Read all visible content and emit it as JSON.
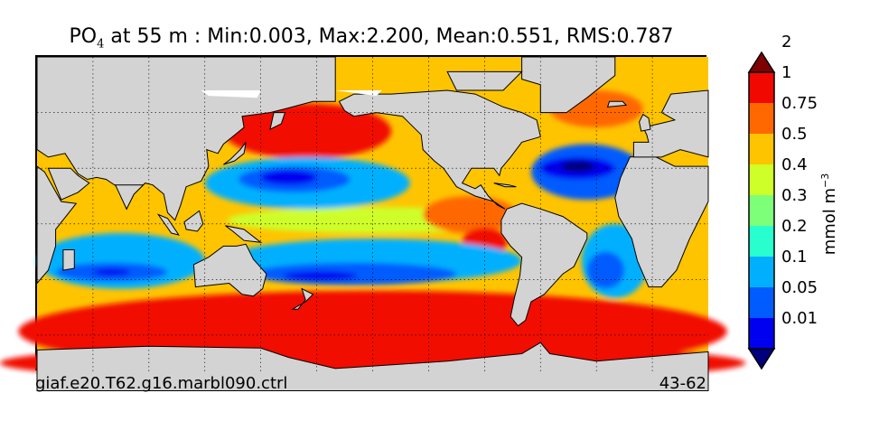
{
  "chart_data": {
    "type": "heatmap",
    "title": {
      "variable": "PO",
      "variable_subscript": "4",
      "rest": " at 55 m : Min:0.003, Max:2.200, Mean:0.551, RMS:0.787"
    },
    "stats": {
      "min": 0.003,
      "max": 2.2,
      "mean": 0.551,
      "rms": 0.787,
      "depth_m": 55
    },
    "xlim": [
      30,
      390
    ],
    "ylim": [
      -80,
      90
    ],
    "colorbar": {
      "levels": [
        "0.01",
        "0.05",
        "0.1",
        "0.2",
        "0.3",
        "0.4",
        "0.5",
        "0.75",
        "1",
        "2"
      ],
      "colors": [
        "#00007f",
        "#0000f0",
        "#005cff",
        "#00b0ff",
        "#29ffce",
        "#7dff7a",
        "#ceff29",
        "#ffc400",
        "#ff6800",
        "#f10800",
        "#7f0000"
      ],
      "extend": "both",
      "unit_base": "mmol m",
      "unit_exp": "−3"
    },
    "footer": {
      "left": "giaf.e20.T62.g16.marbl090.ctrl",
      "right": "43-62"
    },
    "colors": {
      "land": "#d3d3d3",
      "missing": "#ffffff"
    }
  }
}
